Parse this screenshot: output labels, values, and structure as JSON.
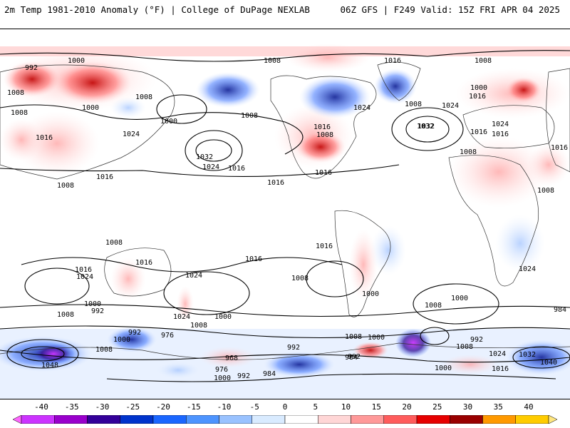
{
  "header": {
    "title_left": "2m Temp 1981-2010 Anomaly (°F) | College of DuPage NEXLAB",
    "title_right": "06Z GFS | F249 Valid: 15Z FRI APR 04 2025"
  },
  "map": {
    "contour_labels": [
      "1000",
      "992",
      "1008",
      "1008",
      "1016",
      "1000",
      "1008",
      "1024",
      "1016",
      "1008",
      "1000",
      "1008",
      "1032",
      "1024",
      "1016",
      "1016",
      "1008",
      "1016",
      "1008",
      "1024",
      "1016",
      "1008",
      "1016",
      "1000",
      "1016",
      "1024",
      "1032",
      "1008",
      "1016",
      "1024",
      "1016",
      "1008",
      "1008",
      "1016",
      "1016",
      "1024",
      "1008",
      "1016",
      "1024",
      "1000",
      "992",
      "1008",
      "1024",
      "1008",
      "1000",
      "1016",
      "1008",
      "1016",
      "1024",
      "1008",
      "1000",
      "984",
      "992",
      "976",
      "968",
      "1000",
      "992",
      "1008",
      "1000",
      "992",
      "984",
      "976",
      "992",
      "1000",
      "1008",
      "1032",
      "1040",
      "1024",
      "1016",
      "1000",
      "1048",
      "984",
      "1008",
      "1000",
      "992",
      "1032"
    ]
  },
  "colorbar": {
    "ticks": [
      "-40",
      "-35",
      "-30",
      "-25",
      "-20",
      "-15",
      "-10",
      "-5",
      "0",
      "5",
      "10",
      "15",
      "20",
      "25",
      "30",
      "35",
      "40"
    ],
    "colors": [
      "#ff66ff",
      "#cc33ff",
      "#9900cc",
      "#330099",
      "#0033cc",
      "#1a66ff",
      "#4d94ff",
      "#99c2ff",
      "#d9ebff",
      "#ffffff",
      "#ffd6d6",
      "#ff9999",
      "#ff5c5c",
      "#e60000",
      "#990000",
      "#ff9900",
      "#ffcc00",
      "#ffe680"
    ]
  }
}
